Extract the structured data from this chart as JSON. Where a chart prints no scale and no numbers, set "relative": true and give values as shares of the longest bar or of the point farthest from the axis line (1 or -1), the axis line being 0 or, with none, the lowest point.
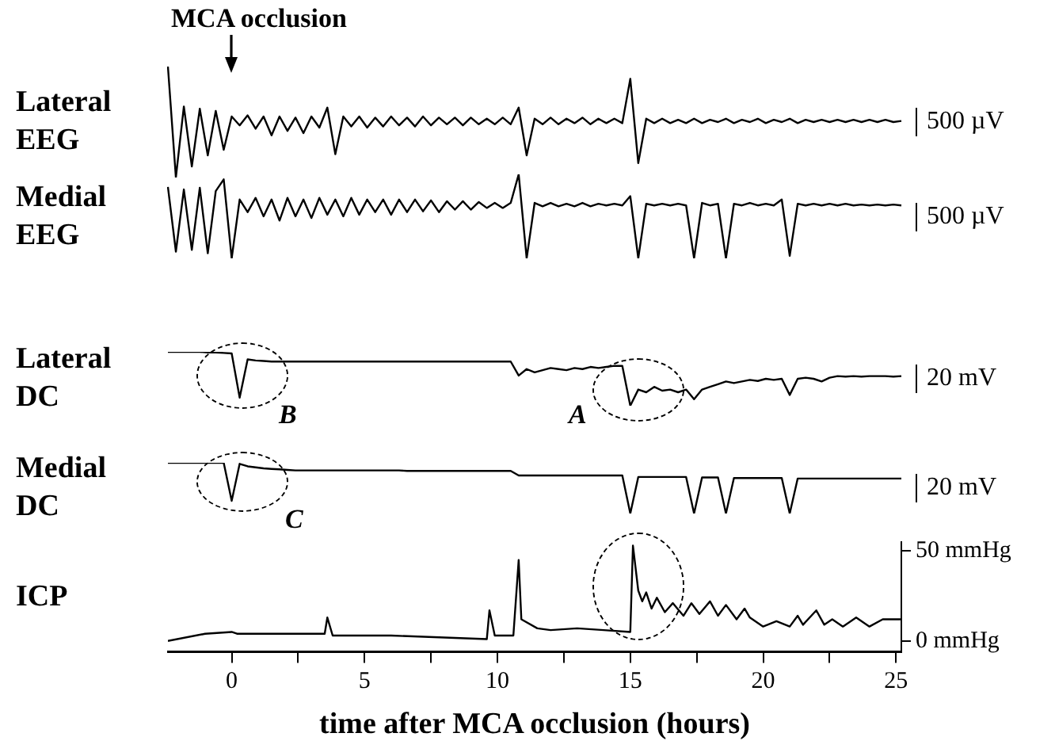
{
  "chart_data": [
    {
      "type": "line",
      "title": "MCA occlusion",
      "ylabel": "Lateral EEG",
      "relative": true,
      "tick_labels": false,
      "annotations": [
        "500 µV"
      ],
      "categories": [
        null,
        null,
        null,
        null,
        null,
        null,
        null,
        null,
        null,
        null,
        null,
        null,
        null,
        null,
        null,
        null,
        null,
        null,
        null,
        null,
        null,
        null,
        null,
        null,
        null,
        null,
        null,
        null,
        null,
        null,
        null,
        null,
        null,
        null,
        null,
        null,
        null,
        null,
        null,
        null,
        null,
        null,
        null,
        null,
        null,
        null,
        null,
        null,
        null,
        null,
        null,
        null,
        null,
        null,
        null,
        null,
        null,
        null,
        null,
        null,
        null,
        null,
        null,
        null,
        null,
        null,
        null,
        null,
        null,
        null,
        null,
        null,
        null,
        null,
        null,
        null,
        null,
        null,
        null,
        null,
        null,
        null,
        null,
        null,
        null,
        null,
        null,
        null,
        null,
        null,
        null,
        null,
        null
      ],
      "series": [
        {
          "color": "#000000",
          "values": [
            1.0,
            0,
            0.64,
            0.1,
            0.62,
            0.2,
            0.6,
            0.25,
            0.55,
            0.47,
            0.56,
            0.44,
            0.55,
            0.38,
            0.55,
            0.42,
            0.54,
            0.4,
            0.55,
            0.45,
            0.63,
            0.21,
            0.55,
            0.46,
            0.55,
            0.45,
            0.54,
            0.46,
            0.55,
            0.47,
            0.54,
            0.46,
            0.55,
            0.47,
            0.54,
            0.48,
            0.54,
            0.47,
            0.54,
            0.48,
            0.53,
            0.48,
            0.54,
            0.48,
            0.63,
            0.2,
            0.53,
            0.48,
            0.54,
            0.48,
            0.53,
            0.49,
            0.54,
            0.48,
            0.53,
            0.49,
            0.53,
            0.49,
            0.89,
            0.13,
            0.53,
            0.49,
            0.53,
            0.49,
            0.52,
            0.49,
            0.53,
            0.49,
            0.52,
            0.5,
            0.53,
            0.49,
            0.52,
            0.5,
            0.53,
            0.49,
            0.52,
            0.5,
            0.53,
            0.49,
            0.52,
            0.5,
            0.52,
            0.5,
            0.52,
            0.5,
            0.52,
            0.5,
            0.52,
            0.5,
            0.52,
            0.5,
            0.51
          ]
        }
      ]
    },
    {
      "type": "line",
      "ylabel": "Medial EEG",
      "relative": true,
      "tick_labels": false,
      "annotations": [
        "500 µV"
      ],
      "categories": [
        null,
        null,
        null,
        null,
        null,
        null,
        null,
        null,
        null,
        null,
        null,
        null,
        null,
        null,
        null,
        null,
        null,
        null,
        null,
        null,
        null,
        null,
        null,
        null,
        null,
        null,
        null,
        null,
        null,
        null,
        null,
        null,
        null,
        null,
        null,
        null,
        null,
        null,
        null,
        null,
        null,
        null,
        null,
        null,
        null,
        null,
        null,
        null,
        null,
        null,
        null,
        null,
        null,
        null,
        null,
        null,
        null,
        null,
        null,
        null,
        null,
        null,
        null,
        null,
        null,
        null,
        null,
        null,
        null,
        null,
        null,
        null,
        null,
        null,
        null,
        null,
        null,
        null,
        null,
        null,
        null,
        null,
        null,
        null,
        null,
        null,
        null,
        null,
        null,
        null,
        null,
        null,
        null
      ],
      "series": [
        {
          "color": "#000000",
          "values": [
            0.85,
            0.08,
            0.82,
            0.1,
            0.84,
            0.06,
            0.8,
            0.94,
            0,
            0.7,
            0.55,
            0.72,
            0.5,
            0.7,
            0.45,
            0.72,
            0.5,
            0.7,
            0.48,
            0.72,
            0.52,
            0.7,
            0.5,
            0.72,
            0.52,
            0.7,
            0.55,
            0.7,
            0.52,
            0.7,
            0.55,
            0.7,
            0.56,
            0.69,
            0.55,
            0.68,
            0.58,
            0.68,
            0.58,
            0.67,
            0.6,
            0.66,
            0.6,
            0.66,
            1,
            0,
            0.66,
            0.62,
            0.66,
            0.62,
            0.65,
            0.62,
            0.66,
            0.62,
            0.65,
            0.63,
            0.65,
            0.63,
            0.74,
            0,
            0.65,
            0.63,
            0.65,
            0.63,
            0.65,
            0.63,
            0,
            0.66,
            0.63,
            0.65,
            0,
            0.65,
            0.63,
            0.66,
            0.63,
            0.65,
            0.63,
            0.7,
            0.03,
            0.65,
            0.63,
            0.65,
            0.63,
            0.65,
            0.63,
            0.65,
            0.63,
            0.64,
            0.63,
            0.64,
            0.63,
            0.64,
            0.63
          ]
        }
      ]
    },
    {
      "type": "line",
      "ylabel": "Lateral DC",
      "relative": true,
      "tick_labels": false,
      "annotations": [
        "20 mV",
        "B",
        "A"
      ],
      "categories": [
        null,
        null,
        null,
        null,
        null,
        null,
        null,
        null,
        null,
        null,
        null,
        null,
        null,
        null,
        null,
        null,
        null,
        null,
        null,
        null,
        null,
        null,
        null,
        null,
        null,
        null,
        null,
        null,
        null,
        null,
        null,
        null,
        null,
        null,
        null,
        null,
        null,
        null,
        null,
        null,
        null,
        null,
        null,
        null,
        null,
        null,
        null,
        null,
        null,
        null,
        null,
        null,
        null,
        null,
        null,
        null,
        null,
        null,
        null,
        null,
        null,
        null,
        null,
        null,
        null,
        null,
        null,
        null,
        null,
        null,
        null,
        null,
        null,
        null,
        null,
        null,
        null,
        null,
        null,
        null,
        null,
        null,
        null,
        null,
        null,
        null,
        null,
        null,
        null,
        null,
        null,
        null,
        null
      ],
      "series": [
        {
          "color": "#000000",
          "values": [
            1,
            1,
            1,
            1,
            1,
            0.99,
            0.99,
            0.98,
            0.97,
            0.15,
            0.86,
            0.84,
            0.83,
            0.82,
            0.82,
            0.82,
            0.82,
            0.82,
            0.82,
            0.82,
            0.82,
            0.82,
            0.82,
            0.82,
            0.82,
            0.82,
            0.82,
            0.82,
            0.82,
            0.82,
            0.82,
            0.82,
            0.82,
            0.82,
            0.82,
            0.82,
            0.82,
            0.82,
            0.82,
            0.82,
            0.82,
            0.82,
            0.82,
            0.82,
            0.56,
            0.68,
            0.62,
            0.66,
            0.7,
            0.68,
            0.66,
            0.7,
            0.68,
            0.72,
            0.7,
            0.72,
            0.74,
            0.74,
            0,
            0.3,
            0.25,
            0.35,
            0.28,
            0.3,
            0.25,
            0.3,
            0.12,
            0.3,
            0.35,
            0.4,
            0.45,
            0.42,
            0.45,
            0.48,
            0.46,
            0.5,
            0.48,
            0.5,
            0.2,
            0.5,
            0.52,
            0.5,
            0.45,
            0.52,
            0.55,
            0.54,
            0.55,
            0.54,
            0.55,
            0.55,
            0.55,
            0.54,
            0.55
          ]
        }
      ]
    },
    {
      "type": "line",
      "ylabel": "Medial DC",
      "relative": true,
      "tick_labels": false,
      "annotations": [
        "20 mV",
        "C"
      ],
      "categories": [
        null,
        null,
        null,
        null,
        null,
        null,
        null,
        null,
        null,
        null,
        null,
        null,
        null,
        null,
        null,
        null,
        null,
        null,
        null,
        null,
        null,
        null,
        null,
        null,
        null,
        null,
        null,
        null,
        null,
        null,
        null,
        null,
        null,
        null,
        null,
        null,
        null,
        null,
        null,
        null,
        null,
        null,
        null,
        null,
        null,
        null,
        null,
        null,
        null,
        null,
        null,
        null,
        null,
        null,
        null,
        null,
        null,
        null,
        null,
        null,
        null,
        null,
        null,
        null,
        null,
        null,
        null,
        null,
        null,
        null,
        null,
        null,
        null,
        null,
        null,
        null,
        null,
        null,
        null,
        null,
        null,
        null,
        null,
        null,
        null,
        null,
        null,
        null,
        null,
        null,
        null,
        null,
        null
      ],
      "series": [
        {
          "color": "#000000",
          "values": [
            1,
            1,
            1,
            1,
            1,
            1,
            1,
            1,
            0.25,
            0.98,
            0.93,
            0.91,
            0.89,
            0.88,
            0.87,
            0.86,
            0.85,
            0.85,
            0.85,
            0.85,
            0.85,
            0.85,
            0.85,
            0.85,
            0.85,
            0.85,
            0.85,
            0.85,
            0.85,
            0.85,
            0.84,
            0.84,
            0.84,
            0.84,
            0.84,
            0.84,
            0.84,
            0.84,
            0.84,
            0.84,
            0.84,
            0.84,
            0.84,
            0.84,
            0.75,
            0.75,
            0.75,
            0.75,
            0.75,
            0.75,
            0.75,
            0.75,
            0.75,
            0.75,
            0.75,
            0.75,
            0.75,
            0.75,
            0,
            0.72,
            0.72,
            0.72,
            0.72,
            0.72,
            0.72,
            0.72,
            0,
            0.71,
            0.71,
            0.71,
            0,
            0.7,
            0.7,
            0.7,
            0.7,
            0.7,
            0.7,
            0.7,
            0,
            0.69,
            0.69,
            0.69,
            0.69,
            0.69,
            0.69,
            0.69,
            0.69,
            0.69,
            0.69,
            0.69,
            0.69,
            0.69,
            0.69
          ]
        }
      ]
    },
    {
      "type": "line",
      "ylabel": "ICP",
      "xlabel": "time after MCA occlusion (hours)",
      "xlim": [
        -2.4,
        25.2
      ],
      "ylim": [
        -6,
        55
      ],
      "xticks": [
        0,
        {
          "value": 2.5,
          "label": null
        },
        5,
        {
          "value": 7.5,
          "label": null
        },
        10,
        {
          "value": 12.5,
          "label": null
        },
        15,
        {
          "value": 17.5,
          "label": null
        },
        20,
        {
          "value": 22.5,
          "label": null
        },
        25
      ],
      "yticks": [
        {
          "value": 0,
          "label": "0 mmHg"
        },
        {
          "value": 50,
          "label": "50 mmHg"
        }
      ],
      "series": [
        {
          "color": "#000000",
          "x": [
            -2.4,
            -1,
            0,
            0.2,
            2,
            3.5,
            3.6,
            3.8,
            6,
            9.6,
            9.7,
            9.9,
            10.6,
            10.8,
            10.9,
            11.5,
            12,
            13,
            14,
            15,
            15.1,
            15.3,
            15.45,
            15.6,
            15.8,
            16,
            16.3,
            16.6,
            17,
            17.3,
            17.6,
            18,
            18.3,
            18.6,
            19,
            19.3,
            19.5,
            20,
            20.5,
            21,
            21.3,
            21.5,
            22,
            22.3,
            22.6,
            23,
            23.5,
            24,
            24.5,
            25.2
          ],
          "values": [
            0,
            4,
            5,
            4,
            4,
            4,
            13,
            3,
            3,
            1,
            17,
            3,
            3,
            45,
            12,
            7,
            6,
            7,
            6,
            5,
            53,
            28,
            22,
            27,
            18,
            24,
            16,
            21,
            14,
            21,
            15,
            22,
            14,
            20,
            12,
            18,
            13,
            8,
            11,
            8,
            14,
            9,
            17,
            9,
            12,
            8,
            13,
            8,
            12,
            12
          ]
        }
      ]
    }
  ]
}
